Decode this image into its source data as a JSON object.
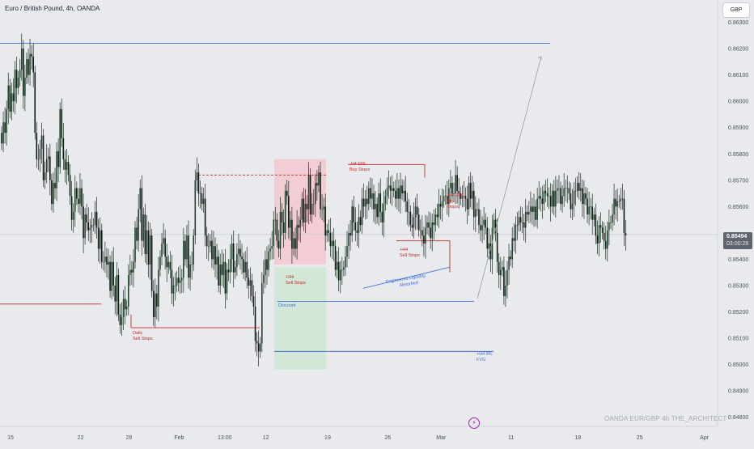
{
  "header": {
    "title": "Euro / British Pound, 4h, OANDA",
    "currency": "GBP"
  },
  "footer": {
    "watermark": "OANDA  EUR/GBP 4h  THE_ARCHITECT",
    "bolt_icon": "lightning-bolt-icon"
  },
  "price_tag": {
    "price": "0.85494",
    "countdown": "03:00:28",
    "color": "#5f6570"
  },
  "colors": {
    "bull": "#1a2e22",
    "bear": "#1f2d24",
    "red": "#c62828",
    "blue": "#3f6fd8",
    "pink_zone": "#f3c9cf",
    "green_zone": "#cde6d3"
  },
  "chart_data": {
    "type": "candlestick",
    "symbol": "EUR/GBP",
    "timeframe": "4h",
    "broker": "OANDA",
    "ylim": [
      0.8479,
      0.8636
    ],
    "y_ticks": [
      0.863,
      0.862,
      0.861,
      0.86,
      0.859,
      0.858,
      0.857,
      0.856,
      0.854,
      0.853,
      0.852,
      0.851,
      0.85,
      0.849,
      0.848
    ],
    "y_tick_labels": [
      "0.86300",
      "0.86200",
      "0.86100",
      "0.86000",
      "0.85900",
      "0.85800",
      "0.85700",
      "0.85600",
      "0.85400",
      "0.85300",
      "0.85200",
      "0.85100",
      "0.85000",
      "0.84900",
      "0.84800"
    ],
    "x_tick_labels": [
      "15",
      "22",
      "26",
      "Feb",
      "13:00",
      "12",
      "19",
      "26",
      "Mar",
      "11",
      "18",
      "25",
      "Apr"
    ],
    "x_tick_bars": [
      2,
      44,
      73,
      102,
      128,
      155,
      192,
      228,
      259,
      302,
      342,
      379,
      417
    ],
    "bars_visible": 430,
    "last_price": 0.85494,
    "candles": {
      "o": [
        0.8588,
        0.8584,
        0.8592,
        0.8588,
        0.8597,
        0.8606,
        0.8596,
        0.8603,
        0.86,
        0.8612,
        0.8605,
        0.8609,
        0.8612,
        0.862,
        0.8602,
        0.8609,
        0.8616,
        0.861,
        0.8618,
        0.8617,
        0.8611,
        0.8588,
        0.8578,
        0.8578,
        0.8582,
        0.8587,
        0.857,
        0.8573,
        0.8578,
        0.8579,
        0.857,
        0.8561,
        0.8569,
        0.8567,
        0.8581,
        0.8575,
        0.8597,
        0.8586,
        0.8578,
        0.8574,
        0.8577,
        0.8572,
        0.8564,
        0.8555,
        0.8558,
        0.8567,
        0.8563,
        0.8561,
        0.8567,
        0.856,
        0.8548,
        0.8557,
        0.8554,
        0.8551,
        0.8552,
        0.8553,
        0.8553,
        0.8558,
        0.8552,
        0.8544,
        0.8551,
        0.8539,
        0.8539,
        0.8541,
        0.8538,
        0.8539,
        0.8528,
        0.8539,
        0.853,
        0.8524,
        0.8534,
        0.8519,
        0.8515,
        0.8518,
        0.8525,
        0.8521,
        0.8522,
        0.8534,
        0.8536,
        0.8535,
        0.8539,
        0.8552,
        0.8547,
        0.8559,
        0.8567,
        0.8547,
        0.8557,
        0.8542,
        0.8551,
        0.8538,
        0.8549,
        0.8528,
        0.8518,
        0.8527,
        0.8522,
        0.8536,
        0.8541,
        0.8546,
        0.8548,
        0.8541,
        0.8537,
        0.8539,
        0.8536,
        0.8527,
        0.853,
        0.853,
        0.8533,
        0.8531,
        0.8532,
        0.8533,
        0.8547,
        0.854,
        0.8549,
        0.8533,
        0.8538,
        0.8538,
        0.8549,
        0.857,
        0.8573,
        0.8565,
        0.8565,
        0.8561,
        0.8563,
        0.8549,
        0.8545,
        0.8545,
        0.8547,
        0.854,
        0.8545,
        0.8538,
        0.8541,
        0.853,
        0.8538,
        0.8534,
        0.8539,
        0.8527,
        0.8536,
        0.8535,
        0.854,
        0.8546,
        0.8535,
        0.8537,
        0.8542,
        0.8544,
        0.8541,
        0.854,
        0.8535,
        0.8539,
        0.8533,
        0.853,
        0.8532,
        0.8526,
        0.8522,
        0.8509,
        0.8508,
        0.8505,
        0.8508,
        0.8531,
        0.8534,
        0.854,
        0.8536,
        0.8543,
        0.8544,
        0.8545,
        0.8555,
        0.8555,
        0.8547,
        0.8544,
        0.8558,
        0.8554,
        0.855,
        0.8566,
        0.8564,
        0.8552,
        0.8555,
        0.8544,
        0.8548,
        0.8544,
        0.8553,
        0.8552,
        0.8555,
        0.8563,
        0.8554,
        0.8561,
        0.8559,
        0.8572,
        0.8557,
        0.8561,
        0.8561,
        0.8569,
        0.8568,
        0.8573,
        0.8559,
        0.8559,
        0.856,
        0.8549,
        0.8551,
        0.855,
        0.8545,
        0.8547,
        0.8545,
        0.8536,
        0.8539,
        0.8532,
        0.8536,
        0.8536,
        0.8537,
        0.8541,
        0.8545,
        0.855,
        0.8549,
        0.856,
        0.8554,
        0.8551,
        0.855,
        0.8556,
        0.8553,
        0.8563,
        0.856,
        0.8563,
        0.8561,
        0.8567,
        0.8563,
        0.8565,
        0.8559,
        0.8561,
        0.8556,
        0.8565,
        0.8558,
        0.8554,
        0.8561,
        0.8564,
        0.8567,
        0.8568,
        0.8566,
        0.8567,
        0.8566,
        0.8563,
        0.8567,
        0.8563,
        0.8568,
        0.8565,
        0.8566,
        0.8562,
        0.8558,
        0.8558,
        0.8553,
        0.8552,
        0.8556,
        0.856,
        0.8557,
        0.8551,
        0.8551,
        0.8549,
        0.8546,
        0.8552,
        0.8554,
        0.8552,
        0.8548,
        0.8554,
        0.8553,
        0.8557,
        0.8556,
        0.8561,
        0.856,
        0.8562,
        0.8564,
        0.8564,
        0.8561,
        0.8567,
        0.8569,
        0.8565,
        0.8565,
        0.8572,
        0.8566,
        0.8565,
        0.8563,
        0.8564,
        0.8564,
        0.8563,
        0.8559,
        0.8569,
        0.8563,
        0.8566,
        0.8556,
        0.8559,
        0.8559,
        0.8553,
        0.8551,
        0.8553,
        0.8555,
        0.8552,
        0.8544,
        0.8546,
        0.854,
        0.8552,
        0.8555,
        0.855,
        0.8539,
        0.8534,
        0.8536,
        0.8537,
        0.8526,
        0.853,
        0.8536,
        0.8541,
        0.854,
        0.8548,
        0.8547,
        0.8553,
        0.8553,
        0.8556,
        0.8554,
        0.8554,
        0.8552,
        0.8558,
        0.8557,
        0.8558,
        0.856,
        0.8558,
        0.856,
        0.8555,
        0.8563,
        0.8564,
        0.8563,
        0.8561,
        0.8566,
        0.8565,
        0.8564,
        0.8564,
        0.856,
        0.8566,
        0.856,
        0.8566,
        0.8567,
        0.8567,
        0.8561,
        0.8564,
        0.8567,
        0.8567,
        0.8567,
        0.8565,
        0.8559,
        0.8561,
        0.8566,
        0.8566,
        0.8569,
        0.8566,
        0.8567,
        0.8561,
        0.8565,
        0.8563,
        0.8557,
        0.856,
        0.856,
        0.8555,
        0.8557,
        0.8549,
        0.8546,
        0.8553,
        0.8552,
        0.855,
        0.8547,
        0.8544,
        0.8551,
        0.8554,
        0.8554,
        0.8557,
        0.8563,
        0.856,
        0.8562,
        0.8562,
        0.8563,
        0.8563,
        0.855
      ],
      "c": [
        0.8584,
        0.8592,
        0.8588,
        0.8597,
        0.8606,
        0.8596,
        0.8603,
        0.86,
        0.8612,
        0.8605,
        0.8609,
        0.8612,
        0.862,
        0.8602,
        0.8609,
        0.8616,
        0.861,
        0.8618,
        0.8617,
        0.8611,
        0.8588,
        0.8578,
        0.8578,
        0.8582,
        0.8587,
        0.857,
        0.8573,
        0.8578,
        0.8579,
        0.857,
        0.8561,
        0.8569,
        0.8567,
        0.8581,
        0.8575,
        0.8597,
        0.8586,
        0.8578,
        0.8574,
        0.8577,
        0.8572,
        0.8564,
        0.8555,
        0.8558,
        0.8567,
        0.8563,
        0.8561,
        0.8567,
        0.856,
        0.8548,
        0.8557,
        0.8554,
        0.8551,
        0.8552,
        0.8553,
        0.8553,
        0.8558,
        0.8552,
        0.8544,
        0.8551,
        0.8539,
        0.8539,
        0.8541,
        0.8538,
        0.8539,
        0.8528,
        0.8539,
        0.853,
        0.8524,
        0.8534,
        0.8519,
        0.8515,
        0.8518,
        0.8525,
        0.8521,
        0.8522,
        0.8534,
        0.8536,
        0.8535,
        0.8539,
        0.8552,
        0.8547,
        0.8559,
        0.8567,
        0.8547,
        0.8557,
        0.8542,
        0.8551,
        0.8538,
        0.8549,
        0.8528,
        0.8518,
        0.8527,
        0.8522,
        0.8536,
        0.8541,
        0.8546,
        0.8548,
        0.8541,
        0.8537,
        0.8539,
        0.8536,
        0.8527,
        0.853,
        0.853,
        0.8533,
        0.8531,
        0.8532,
        0.8533,
        0.8547,
        0.854,
        0.8549,
        0.8533,
        0.8538,
        0.8538,
        0.8549,
        0.857,
        0.8573,
        0.8565,
        0.8565,
        0.8561,
        0.8563,
        0.8549,
        0.8545,
        0.8545,
        0.8547,
        0.854,
        0.8545,
        0.8538,
        0.8541,
        0.853,
        0.8538,
        0.8534,
        0.8539,
        0.8527,
        0.8536,
        0.8535,
        0.854,
        0.8546,
        0.8535,
        0.8537,
        0.8542,
        0.8544,
        0.8541,
        0.854,
        0.8535,
        0.8539,
        0.8533,
        0.853,
        0.8532,
        0.8526,
        0.8522,
        0.8509,
        0.8508,
        0.8505,
        0.8508,
        0.8531,
        0.8534,
        0.854,
        0.8536,
        0.8543,
        0.8544,
        0.8545,
        0.8555,
        0.8555,
        0.8547,
        0.8544,
        0.8558,
        0.8554,
        0.855,
        0.8566,
        0.8564,
        0.8552,
        0.8555,
        0.8544,
        0.8548,
        0.8544,
        0.8553,
        0.8552,
        0.8555,
        0.8563,
        0.8554,
        0.8561,
        0.8559,
        0.8572,
        0.8557,
        0.8561,
        0.8561,
        0.8569,
        0.8568,
        0.8573,
        0.8559,
        0.8559,
        0.856,
        0.8549,
        0.8551,
        0.855,
        0.8545,
        0.8547,
        0.8545,
        0.8536,
        0.8539,
        0.8532,
        0.8536,
        0.8536,
        0.8537,
        0.8541,
        0.8545,
        0.855,
        0.8549,
        0.856,
        0.8554,
        0.8551,
        0.855,
        0.8556,
        0.8553,
        0.8563,
        0.856,
        0.8563,
        0.8561,
        0.8567,
        0.8563,
        0.8565,
        0.8559,
        0.8561,
        0.8556,
        0.8565,
        0.8558,
        0.8554,
        0.8561,
        0.8564,
        0.8567,
        0.8568,
        0.8566,
        0.8567,
        0.8566,
        0.8563,
        0.8567,
        0.8563,
        0.8568,
        0.8565,
        0.8566,
        0.8562,
        0.8558,
        0.8558,
        0.8553,
        0.8552,
        0.8556,
        0.856,
        0.8557,
        0.8551,
        0.8551,
        0.8549,
        0.8546,
        0.8552,
        0.8554,
        0.8552,
        0.8548,
        0.8554,
        0.8553,
        0.8557,
        0.8556,
        0.8561,
        0.856,
        0.8562,
        0.8564,
        0.8564,
        0.8561,
        0.8567,
        0.8569,
        0.8565,
        0.8565,
        0.8572,
        0.8566,
        0.8565,
        0.8563,
        0.8564,
        0.8564,
        0.8563,
        0.8559,
        0.8569,
        0.8563,
        0.8566,
        0.8556,
        0.8559,
        0.8559,
        0.8553,
        0.8551,
        0.8553,
        0.8555,
        0.8552,
        0.8544,
        0.8546,
        0.854,
        0.8552,
        0.8555,
        0.855,
        0.8539,
        0.8534,
        0.8536,
        0.8537,
        0.8526,
        0.853,
        0.8536,
        0.8541,
        0.854,
        0.8548,
        0.8547,
        0.8553,
        0.8553,
        0.8556,
        0.8554,
        0.8554,
        0.8552,
        0.8558,
        0.8557,
        0.8558,
        0.856,
        0.8558,
        0.856,
        0.8555,
        0.8563,
        0.8564,
        0.8563,
        0.8561,
        0.8566,
        0.8565,
        0.8564,
        0.8564,
        0.856,
        0.8566,
        0.856,
        0.8566,
        0.8567,
        0.8567,
        0.8561,
        0.8564,
        0.8567,
        0.8567,
        0.8567,
        0.8565,
        0.8559,
        0.8561,
        0.8566,
        0.8566,
        0.8569,
        0.8566,
        0.8567,
        0.8561,
        0.8565,
        0.8563,
        0.8557,
        0.856,
        0.856,
        0.8555,
        0.8557,
        0.8549,
        0.8546,
        0.8553,
        0.8552,
        0.855,
        0.8547,
        0.8544,
        0.8551,
        0.8554,
        0.8554,
        0.8557,
        0.8563,
        0.856,
        0.8562,
        0.8562,
        0.8563,
        0.8563,
        0.855,
        0.8549
      ]
    },
    "levels": [
      {
        "name": "top-liquidity",
        "price": 0.8622,
        "color": "#3f6fd8"
      },
      {
        "name": "left-red",
        "price": 0.8523,
        "color": "#c62828"
      },
      {
        "name": "daily-sell-stops",
        "price": 0.8514,
        "color": "#c62828"
      },
      {
        "name": "dashed-high",
        "price": 0.8572,
        "color": "#c62828",
        "dashed": true
      },
      {
        "name": "discount",
        "price": 0.8524,
        "color": "#3f6fd8"
      },
      {
        "name": "h4-irl-fvg",
        "price": 0.8505,
        "color": "#3f6fd8"
      },
      {
        "name": "h4-erl-buy",
        "price": 0.8576,
        "color": "#c62828"
      },
      {
        "name": "h4-sell-stops",
        "price": 0.8547,
        "color": "#c62828"
      }
    ],
    "zones": [
      {
        "name": "premium-zone",
        "y_from": 0.8578,
        "y_to": 0.8538,
        "color": "#f3c9cf"
      },
      {
        "name": "discount-zone",
        "y_from": 0.8537,
        "y_to": 0.8498,
        "color": "#cde6d3"
      }
    ],
    "annotations": {
      "daily_sell_stops": [
        "Daily",
        "Sell Stops"
      ],
      "h4_sell_stops_1": [
        "+H4",
        "Sell Stops"
      ],
      "discount": "Discount",
      "h4_erl_buy_stops": [
        "-H4 ERL",
        "Buy Stops"
      ],
      "h4_sell_stops_2": [
        "+H4",
        "Sell Stops"
      ],
      "h4_erl_buy_stops_2": [
        "-H4 ERL",
        "Buy",
        "Stops"
      ],
      "engineered_liquidity": [
        "Engineered Liquidity",
        "Absorbed"
      ],
      "h4_irl_fvg": [
        "+H4 IRL",
        "FVG"
      ]
    },
    "projection": {
      "from_price": 0.8525,
      "to_price": 0.8617
    }
  }
}
